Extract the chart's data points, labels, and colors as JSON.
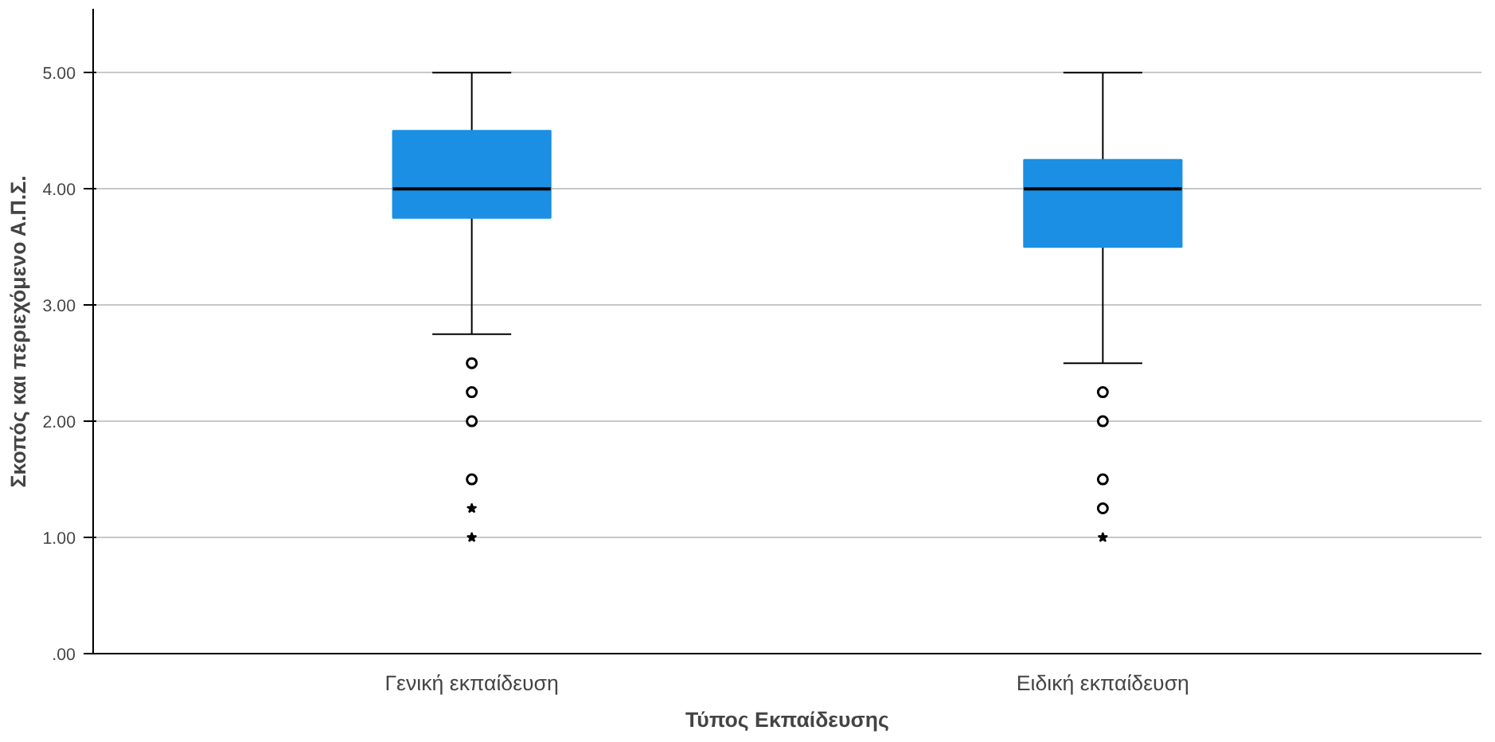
{
  "chart_data": {
    "type": "box",
    "xlabel": "Τύπος Εκπαίδευσης",
    "ylabel": "Σκοπός και περιεχόμενο Α.Π.Σ.",
    "categories": [
      "Γενική εκπαίδευση",
      "Ειδική εκπαίδευση"
    ],
    "color": "#1a8fe3",
    "boxes": [
      {
        "low": 2.75,
        "q1": 3.75,
        "median": 4.0,
        "q3": 4.5,
        "high": 5.0,
        "outliers": [
          2.5,
          2.25,
          2.0,
          1.5
        ]
      },
      {
        "low": 2.5,
        "q1": 3.5,
        "median": 4.0,
        "q3": 4.25,
        "high": 5.0,
        "outliers": [
          2.25,
          2.0,
          1.5,
          1.25
        ]
      }
    ],
    "series": [
      {
        "type": "scatter",
        "marker": "star",
        "color": "#000000",
        "x": [
          "Γενική εκπαίδευση",
          "Γενική εκπαίδευση",
          "Ειδική εκπαίδευση"
        ],
        "values": [
          1.25,
          1.0,
          1.0
        ]
      }
    ],
    "ylim": [
      0,
      5.55
    ],
    "yticks": [
      {
        "value": 0,
        "label": ".00"
      },
      {
        "value": 1,
        "label": "1.00"
      },
      {
        "value": 2,
        "label": "2.00"
      },
      {
        "value": 3,
        "label": "3.00"
      },
      {
        "value": 4,
        "label": "4.00"
      },
      {
        "value": 5,
        "label": "5.00"
      }
    ],
    "grid": "y"
  }
}
